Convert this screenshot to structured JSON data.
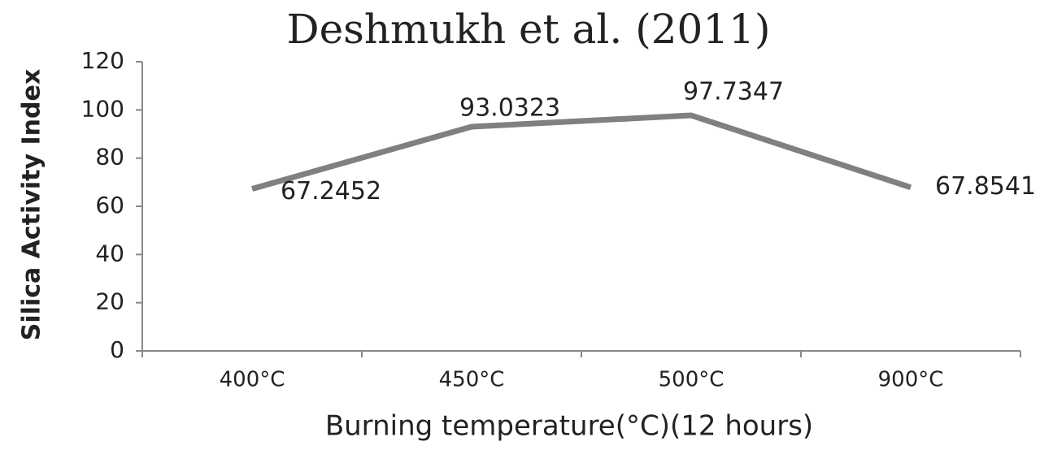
{
  "chart_data": {
    "type": "line",
    "title": "Deshmukh et al. (2011)",
    "x_label": "Burning temperature(°C)(12 hours)",
    "y_label": "Silica Activity Index",
    "categories": [
      "400°C",
      "450°C",
      "500°C",
      "900°C"
    ],
    "values": [
      67.2452,
      93.0323,
      97.7347,
      67.8541
    ],
    "color": "#808080",
    "ylim": [
      0,
      120
    ],
    "yticks": [
      0,
      20,
      40,
      60,
      80,
      100,
      120
    ],
    "grid": false
  }
}
